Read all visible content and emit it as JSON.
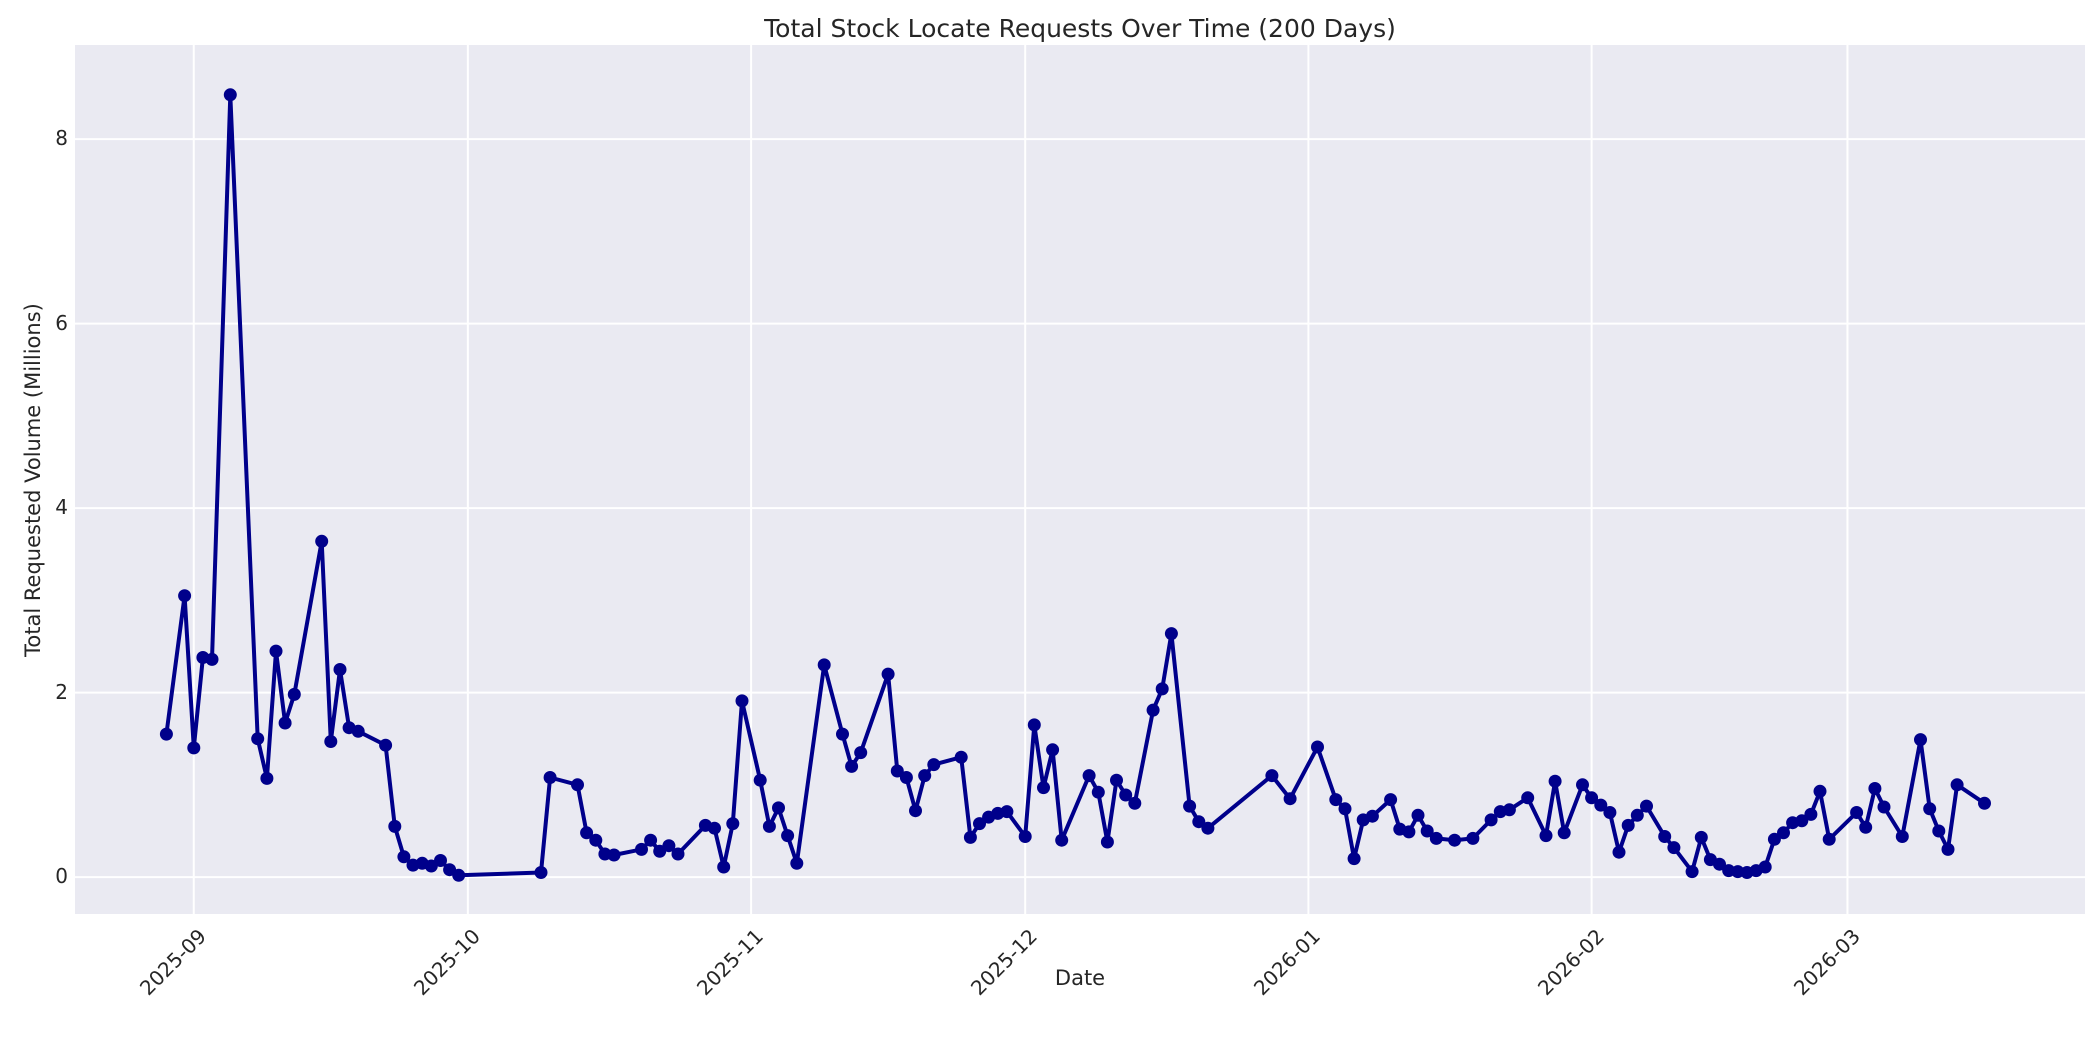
{
  "chart_data": {
    "type": "line",
    "title": "Total Stock Locate Requests Over Time (200 Days)",
    "xlabel": "Date",
    "ylabel": "Total Requested Volume (Millions)",
    "legend": "none",
    "grid": true,
    "y_ticks": [
      0,
      2,
      4,
      6,
      8
    ],
    "x_ticks": [
      {
        "label": "2025-09",
        "date": "2025-09-01"
      },
      {
        "label": "2025-10",
        "date": "2025-10-01"
      },
      {
        "label": "2025-11",
        "date": "2025-11-01"
      },
      {
        "label": "2025-12",
        "date": "2025-12-01"
      },
      {
        "label": "2026-01",
        "date": "2026-01-01"
      },
      {
        "label": "2026-02",
        "date": "2026-02-01"
      },
      {
        "label": "2026-03",
        "date": "2026-03-01"
      }
    ],
    "xlim": [
      "2025-08-19",
      "2026-03-27"
    ],
    "ylim": [
      -0.4,
      9.02
    ],
    "colors": {
      "line": "#00008B",
      "marker": "#00008B",
      "plot_bg": "#EAEAF2",
      "grid": "#FFFFFF",
      "text": "#262626",
      "fig_bg": "#FFFFFF"
    },
    "series": [
      {
        "name": "Total Requested Volume (Millions)",
        "points": [
          [
            "2025-08-29",
            1.55
          ],
          [
            "2025-08-31",
            3.05
          ],
          [
            "2025-09-01",
            1.4
          ],
          [
            "2025-09-02",
            2.38
          ],
          [
            "2025-09-03",
            2.36
          ],
          [
            "2025-09-05",
            8.48
          ],
          [
            "2025-09-08",
            1.5
          ],
          [
            "2025-09-09",
            1.07
          ],
          [
            "2025-09-10",
            2.45
          ],
          [
            "2025-09-11",
            1.67
          ],
          [
            "2025-09-12",
            1.98
          ],
          [
            "2025-09-15",
            3.64
          ],
          [
            "2025-09-16",
            1.47
          ],
          [
            "2025-09-17",
            2.25
          ],
          [
            "2025-09-18",
            1.62
          ],
          [
            "2025-09-19",
            1.58
          ],
          [
            "2025-09-22",
            1.43
          ],
          [
            "2025-09-23",
            0.55
          ],
          [
            "2025-09-24",
            0.22
          ],
          [
            "2025-09-25",
            0.13
          ],
          [
            "2025-09-26",
            0.15
          ],
          [
            "2025-09-27",
            0.12
          ],
          [
            "2025-09-28",
            0.18
          ],
          [
            "2025-09-29",
            0.08
          ],
          [
            "2025-09-30",
            0.02
          ],
          [
            "2025-10-09",
            0.05
          ],
          [
            "2025-10-10",
            1.08
          ],
          [
            "2025-10-13",
            1.0
          ],
          [
            "2025-10-14",
            0.48
          ],
          [
            "2025-10-15",
            0.4
          ],
          [
            "2025-10-16",
            0.25
          ],
          [
            "2025-10-17",
            0.24
          ],
          [
            "2025-10-20",
            0.3
          ],
          [
            "2025-10-21",
            0.4
          ],
          [
            "2025-10-22",
            0.28
          ],
          [
            "2025-10-23",
            0.34
          ],
          [
            "2025-10-24",
            0.25
          ],
          [
            "2025-10-27",
            0.56
          ],
          [
            "2025-10-28",
            0.53
          ],
          [
            "2025-10-29",
            0.11
          ],
          [
            "2025-10-30",
            0.58
          ],
          [
            "2025-10-31",
            1.91
          ],
          [
            "2025-11-02",
            1.05
          ],
          [
            "2025-11-03",
            0.55
          ],
          [
            "2025-11-04",
            0.75
          ],
          [
            "2025-11-05",
            0.45
          ],
          [
            "2025-11-06",
            0.15
          ],
          [
            "2025-11-09",
            2.3
          ],
          [
            "2025-11-11",
            1.55
          ],
          [
            "2025-11-12",
            1.2
          ],
          [
            "2025-11-13",
            1.35
          ],
          [
            "2025-11-16",
            2.2
          ],
          [
            "2025-11-17",
            1.15
          ],
          [
            "2025-11-18",
            1.08
          ],
          [
            "2025-11-19",
            0.72
          ],
          [
            "2025-11-20",
            1.1
          ],
          [
            "2025-11-21",
            1.22
          ],
          [
            "2025-11-24",
            1.3
          ],
          [
            "2025-11-25",
            0.43
          ],
          [
            "2025-11-26",
            0.58
          ],
          [
            "2025-11-27",
            0.65
          ],
          [
            "2025-11-28",
            0.69
          ],
          [
            "2025-11-29",
            0.71
          ],
          [
            "2025-12-01",
            0.44
          ],
          [
            "2025-12-02",
            1.65
          ],
          [
            "2025-12-03",
            0.97
          ],
          [
            "2025-12-04",
            1.38
          ],
          [
            "2025-12-05",
            0.4
          ],
          [
            "2025-12-08",
            1.1
          ],
          [
            "2025-12-09",
            0.92
          ],
          [
            "2025-12-10",
            0.38
          ],
          [
            "2025-12-11",
            1.05
          ],
          [
            "2025-12-12",
            0.89
          ],
          [
            "2025-12-13",
            0.8
          ],
          [
            "2025-12-15",
            1.81
          ],
          [
            "2025-12-16",
            2.04
          ],
          [
            "2025-12-17",
            2.64
          ],
          [
            "2025-12-19",
            0.77
          ],
          [
            "2025-12-20",
            0.6
          ],
          [
            "2025-12-21",
            0.53
          ],
          [
            "2025-12-28",
            1.1
          ],
          [
            "2025-12-30",
            0.85
          ],
          [
            "2026-01-02",
            1.41
          ],
          [
            "2026-01-04",
            0.84
          ],
          [
            "2026-01-05",
            0.74
          ],
          [
            "2026-01-06",
            0.2
          ],
          [
            "2026-01-07",
            0.62
          ],
          [
            "2026-01-08",
            0.66
          ],
          [
            "2026-01-10",
            0.84
          ],
          [
            "2026-01-11",
            0.52
          ],
          [
            "2026-01-12",
            0.49
          ],
          [
            "2026-01-13",
            0.67
          ],
          [
            "2026-01-14",
            0.5
          ],
          [
            "2026-01-15",
            0.42
          ],
          [
            "2026-01-17",
            0.4
          ],
          [
            "2026-01-19",
            0.42
          ],
          [
            "2026-01-21",
            0.62
          ],
          [
            "2026-01-22",
            0.71
          ],
          [
            "2026-01-23",
            0.73
          ],
          [
            "2026-01-25",
            0.86
          ],
          [
            "2026-01-27",
            0.45
          ],
          [
            "2026-01-28",
            1.04
          ],
          [
            "2026-01-29",
            0.48
          ],
          [
            "2026-01-31",
            1.0
          ],
          [
            "2026-02-01",
            0.86
          ],
          [
            "2026-02-02",
            0.78
          ],
          [
            "2026-02-03",
            0.7
          ],
          [
            "2026-02-04",
            0.27
          ],
          [
            "2026-02-05",
            0.56
          ],
          [
            "2026-02-06",
            0.67
          ],
          [
            "2026-02-07",
            0.77
          ],
          [
            "2026-02-09",
            0.44
          ],
          [
            "2026-02-10",
            0.32
          ],
          [
            "2026-02-12",
            0.06
          ],
          [
            "2026-02-13",
            0.43
          ],
          [
            "2026-02-14",
            0.19
          ],
          [
            "2026-02-15",
            0.14
          ],
          [
            "2026-02-16",
            0.07
          ],
          [
            "2026-02-17",
            0.06
          ],
          [
            "2026-02-18",
            0.05
          ],
          [
            "2026-02-19",
            0.07
          ],
          [
            "2026-02-20",
            0.11
          ],
          [
            "2026-02-21",
            0.41
          ],
          [
            "2026-02-22",
            0.48
          ],
          [
            "2026-02-23",
            0.59
          ],
          [
            "2026-02-24",
            0.61
          ],
          [
            "2026-02-25",
            0.68
          ],
          [
            "2026-02-26",
            0.93
          ],
          [
            "2026-02-27",
            0.41
          ],
          [
            "2026-03-02",
            0.7
          ],
          [
            "2026-03-03",
            0.54
          ],
          [
            "2026-03-04",
            0.96
          ],
          [
            "2026-03-05",
            0.76
          ],
          [
            "2026-03-07",
            0.44
          ],
          [
            "2026-03-09",
            1.49
          ],
          [
            "2026-03-10",
            0.74
          ],
          [
            "2026-03-11",
            0.5
          ],
          [
            "2026-03-12",
            0.3
          ],
          [
            "2026-03-13",
            1.0
          ],
          [
            "2026-03-16",
            0.8
          ]
        ]
      }
    ]
  }
}
